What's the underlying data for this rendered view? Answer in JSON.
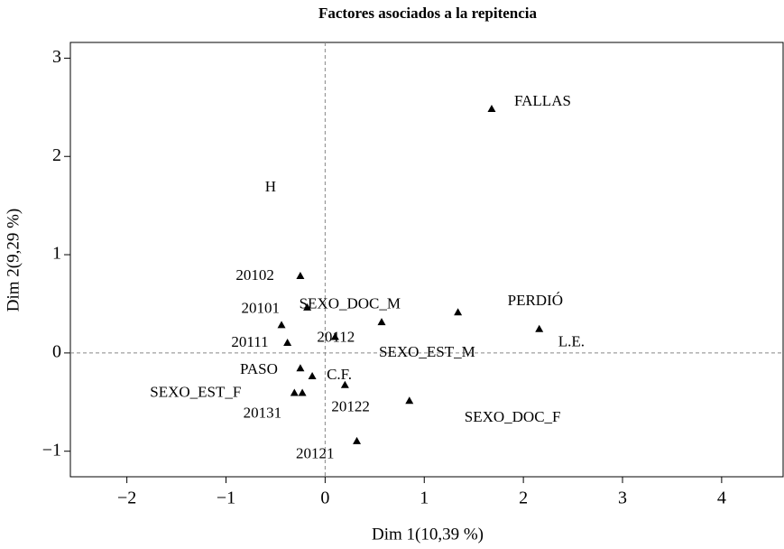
{
  "chart_data": {
    "type": "scatter",
    "title": "Factores asociados a la repitencia",
    "xlabel": "Dim 1(10,39 %)",
    "ylabel": "Dim 2(9,29 %)",
    "xlim": [
      -2.57,
      4.62
    ],
    "ylim": [
      -1.26,
      3.16
    ],
    "xticks": [
      {
        "value": -2,
        "label": "−2"
      },
      {
        "value": -1,
        "label": "−1"
      },
      0,
      1,
      2,
      3,
      4
    ],
    "yticks": [
      {
        "value": -1,
        "label": "−1"
      },
      0,
      1,
      2,
      3
    ],
    "zero_lines": true,
    "color": "#000000",
    "marker": "triangle",
    "series": [
      {
        "name": null,
        "labels": [
          "FALLAS",
          "20102",
          "20101",
          "SEXO_DOC_M",
          "20111",
          "20112",
          "SEXO_EST_M",
          "PERDIÓ",
          "L.E.",
          "PASO",
          "C.F.",
          "SEXO_EST_F",
          "20131",
          "20122",
          "SEXO_DOC_F",
          "20121"
        ],
        "x": [
          1.68,
          -0.25,
          -0.44,
          -0.18,
          -0.38,
          0.1,
          0.57,
          1.34,
          2.16,
          -0.25,
          -0.13,
          -0.31,
          -0.23,
          0.2,
          0.85,
          0.32
        ],
        "values": [
          2.48,
          0.78,
          0.28,
          0.46,
          0.1,
          0.16,
          0.31,
          0.41,
          0.24,
          -0.16,
          -0.24,
          -0.41,
          -0.41,
          -0.33,
          -0.49,
          -0.9
        ]
      }
    ],
    "annotations": [
      {
        "text": "H",
        "x": -0.55,
        "y": 1.68
      }
    ]
  }
}
